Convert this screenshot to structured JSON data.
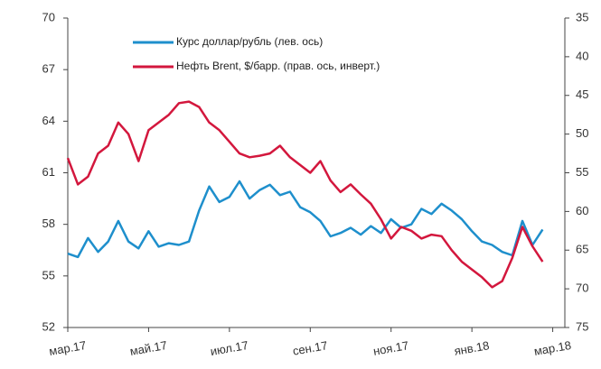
{
  "chart_data": {
    "type": "line",
    "x": [
      0,
      0.25,
      0.5,
      0.75,
      1,
      1.25,
      1.5,
      1.75,
      2,
      2.25,
      2.5,
      2.75,
      3,
      3.25,
      3.5,
      3.75,
      4,
      4.25,
      4.5,
      4.75,
      5,
      5.25,
      5.5,
      5.75,
      6,
      6.25,
      6.5,
      6.75,
      7,
      7.25,
      7.5,
      7.75,
      8,
      8.25,
      8.5,
      8.75,
      9,
      9.25,
      9.5,
      9.75,
      10,
      10.25,
      10.5,
      10.75,
      11,
      11.25,
      11.5,
      11.75
    ],
    "xlim": [
      0,
      12.3
    ],
    "xticks": [
      {
        "value": 0,
        "label": "мар.17"
      },
      {
        "value": 2,
        "label": "май.17"
      },
      {
        "value": 4,
        "label": "июл.17"
      },
      {
        "value": 6,
        "label": "сен.17"
      },
      {
        "value": 8,
        "label": "ноя.17"
      },
      {
        "value": 10,
        "label": "янв.18"
      },
      {
        "value": 12,
        "label": "мар.18"
      }
    ],
    "ylim": [
      52,
      70
    ],
    "yticks": [
      52,
      55,
      58,
      61,
      64,
      67,
      70
    ],
    "y2lim": [
      35,
      75
    ],
    "y2ticks": [
      35,
      40,
      45,
      50,
      55,
      60,
      65,
      70,
      75
    ],
    "y2_inverted": true,
    "series": [
      {
        "name": "Курс доллар/рубль (лев. ось)",
        "color": "#1e8fcc",
        "values": [
          56.3,
          56.1,
          57.2,
          56.4,
          57.0,
          58.2,
          57.0,
          56.6,
          57.6,
          56.7,
          56.9,
          56.8,
          57.0,
          58.8,
          60.2,
          59.3,
          59.6,
          60.5,
          59.5,
          60.0,
          60.3,
          59.7,
          59.9,
          59.0,
          58.7,
          58.2,
          57.3,
          57.5,
          57.8,
          57.4,
          57.9,
          57.5,
          58.3,
          57.8,
          58.0,
          58.9,
          58.6,
          59.2,
          58.8,
          58.3,
          57.6,
          57.0,
          56.8,
          56.4,
          56.2,
          58.2,
          56.8,
          57.7
        ]
      },
      {
        "name": "Нефть Brent, $/барр. (прав. ось, инверт.)",
        "color": "#d3173d",
        "axis": "y2",
        "values": [
          53.1,
          56.5,
          55.5,
          52.5,
          51.5,
          48.5,
          50.0,
          53.5,
          49.5,
          48.5,
          47.5,
          46.0,
          45.8,
          46.5,
          48.5,
          49.5,
          51.0,
          52.5,
          53.0,
          52.8,
          52.5,
          51.5,
          53.0,
          54.0,
          55.0,
          53.5,
          56.0,
          57.5,
          56.5,
          57.8,
          59.0,
          61.0,
          63.5,
          62.0,
          62.5,
          63.5,
          63.0,
          63.2,
          65.0,
          66.5,
          67.5,
          68.5,
          69.8,
          69.0,
          66.0,
          62.0,
          64.5,
          66.5
        ]
      }
    ]
  }
}
